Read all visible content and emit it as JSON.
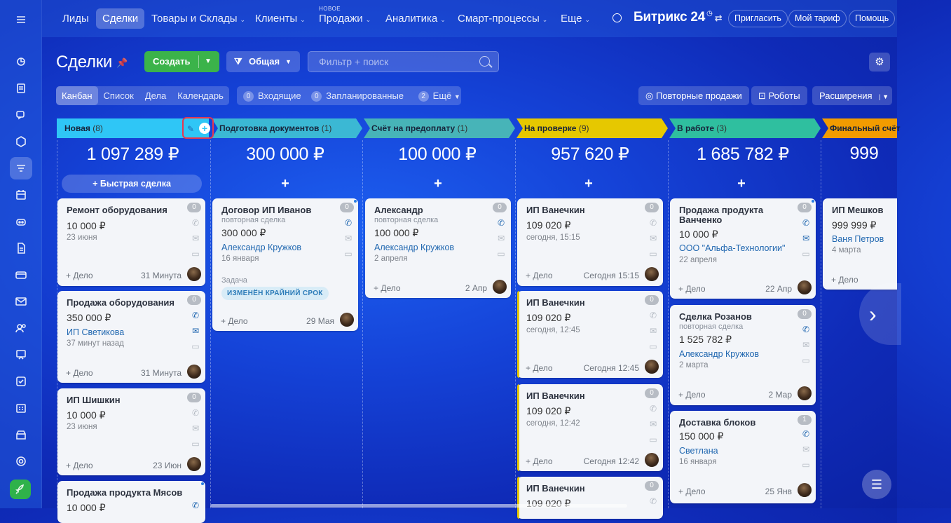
{
  "nav": {
    "items": [
      {
        "label": "Лиды",
        "chev": false
      },
      {
        "label": "Сделки",
        "chev": false,
        "active": true
      },
      {
        "label": "Товары и Склады",
        "chev": true
      },
      {
        "label": "Клиенты",
        "chev": true
      },
      {
        "label": "Продажи",
        "chev": true
      },
      {
        "label": "Аналитика",
        "chev": true
      },
      {
        "label": "Смарт-процессы",
        "chev": true
      },
      {
        "label": "Еще",
        "chev": true
      }
    ],
    "new_tag": "НОВОЕ",
    "brand": "Битрикс 24",
    "invite": "Пригласить",
    "tariff": "Мой тариф",
    "help": "Помощь"
  },
  "header": {
    "title": "Сделки",
    "create": "Создать",
    "category": "Общая",
    "search_placeholder": "Фильтр + поиск"
  },
  "views": [
    "Канбан",
    "Список",
    "Дела",
    "Календарь"
  ],
  "counters": {
    "incoming_count": "0",
    "incoming": "Входящие",
    "planned_count": "0",
    "planned": "Запланированные",
    "more_count": "2",
    "more": "Ещё"
  },
  "right_buttons": {
    "repeat": "Повторные продажи",
    "robots": "Роботы",
    "extensions": "Расширения"
  },
  "quick_deal": "Быстрая сделка",
  "add_deal": "+ Дело",
  "columns": [
    {
      "name": "Новая",
      "count": "(8)",
      "sum": "1 097 289 ₽",
      "color": "#2fc6f6"
    },
    {
      "name": "Подготовка документов",
      "count": "(1)",
      "sum": "300 000 ₽",
      "color": "#3bb8d4"
    },
    {
      "name": "Счёт на предоплату",
      "count": "(1)",
      "sum": "100 000 ₽",
      "color": "#47b4b8"
    },
    {
      "name": "На проверке",
      "count": "(9)",
      "sum": "957 620 ₽",
      "color": "#e6c800"
    },
    {
      "name": "В работе",
      "count": "(3)",
      "sum": "1 685 782 ₽",
      "color": "#2fbf9f"
    },
    {
      "name": "Финальный счёт",
      "count": "",
      "sum": "999",
      "color": "#f29b00"
    }
  ],
  "cards": {
    "c1": {
      "title": "Ремонт оборудования",
      "amount": "10 000 ₽",
      "date": "23 июня",
      "foot": "31 Минута",
      "badge": "0"
    },
    "c2": {
      "title": "Продажа оборудования",
      "amount": "350 000 ₽",
      "client": "ИП Светикова",
      "date": "37 минут назад",
      "foot": "31 Минута",
      "badge": "0"
    },
    "c3": {
      "title": "ИП Шишкин",
      "amount": "10 000 ₽",
      "date": "23 июня",
      "foot": "23 Июн",
      "badge": "0"
    },
    "c4": {
      "title": "Продажа продукта Мясов",
      "amount": "10 000 ₽"
    },
    "c5": {
      "title": "Договор ИП Иванов",
      "sub": "повторная сделка",
      "amount": "300 000 ₽",
      "client": "Александр Кружков",
      "date": "16 января",
      "task_label": "Задача",
      "chip": "ИЗМЕНЁН КРАЙНИЙ СРОК",
      "foot": "29 Мая",
      "badge": "0"
    },
    "c6": {
      "title": "Александр",
      "sub": "повторная сделка",
      "amount": "100 000 ₽",
      "client": "Александр Кружков",
      "date": "2 апреля",
      "foot": "2 Апр",
      "badge": "0"
    },
    "c7": {
      "title": "ИП Ванечкин",
      "amount": "109 020 ₽",
      "date": "сегодня, 15:15",
      "foot": "Сегодня 15:15",
      "badge": "0"
    },
    "c8": {
      "title": "ИП Ванечкин",
      "amount": "109 020 ₽",
      "date": "сегодня, 12:45",
      "foot": "Сегодня 12:45",
      "badge": "0"
    },
    "c9": {
      "title": "ИП Ванечкин",
      "amount": "109 020 ₽",
      "date": "сегодня, 12:42",
      "foot": "Сегодня 12:42",
      "badge": "0"
    },
    "c10": {
      "title": "ИП Ванечкин",
      "amount": "109 020 ₽",
      "badge": "0"
    },
    "c11": {
      "title": "Продажа продукта Ванченко",
      "amount": "10 000 ₽",
      "client": "ООО \"Альфа-Технологии\"",
      "date": "22 апреля",
      "foot": "22 Апр",
      "badge": "0"
    },
    "c12": {
      "title": "Сделка Розанов",
      "sub": "повторная сделка",
      "amount": "1 525 782 ₽",
      "client": "Александр Кружков",
      "date": "2 марта",
      "foot": "2 Мар",
      "badge": "0"
    },
    "c13": {
      "title": "Доставка блоков",
      "amount": "150 000 ₽",
      "client": "Светлана",
      "date": "16 января",
      "foot": "25 Янв",
      "badge": "1"
    },
    "c14": {
      "title": "ИП Мешков",
      "amount": "999 999 ₽",
      "client": "Ваня Петров",
      "date": "4 марта"
    }
  }
}
